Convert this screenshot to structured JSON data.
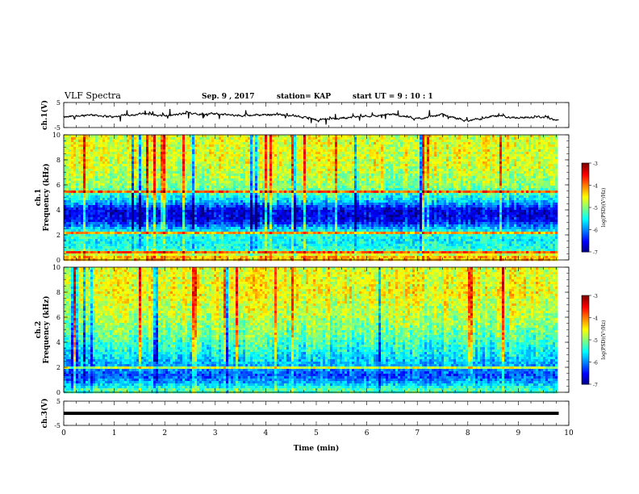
{
  "header": {
    "title": "VLF Spectra",
    "date": "Sep. 9 , 2017",
    "station": "station= KAP",
    "start_ut": "start UT =  9 : 10 : 1"
  },
  "chart_data": [
    {
      "type": "line",
      "panel": "ch1-waveform",
      "ylabel": "ch.1(V)",
      "ylim": [
        -5,
        5
      ],
      "yticks": [
        "5",
        "-5"
      ],
      "x": [
        0.0,
        0.5,
        1.0,
        1.5,
        2.0,
        2.5,
        3.0,
        3.5,
        4.0,
        4.5,
        5.0,
        5.5,
        6.0,
        6.5,
        7.0,
        7.5,
        8.0,
        8.5,
        9.0,
        9.5,
        9.8
      ],
      "values": [
        -1.0,
        0.2,
        -0.8,
        0.6,
        -0.5,
        0.8,
        0.4,
        -0.3,
        0.2,
        0.0,
        -2.0,
        -1.2,
        -0.4,
        0.3,
        -1.5,
        0.2,
        -2.5,
        -0.5,
        -1.0,
        -0.8,
        -2.0
      ],
      "line_color": "#000000"
    },
    {
      "type": "heatmap",
      "panel": "ch1-spectrogram",
      "ylabel": "ch.1\nFrequency (kHz)",
      "ylim": [
        0,
        10
      ],
      "yticks": [
        "0",
        "2",
        "4",
        "6",
        "8",
        "10"
      ],
      "xlim": [
        0,
        10
      ],
      "data_xmax": 9.8,
      "colorbar": {
        "label": "log(PSD)(V²/Hz)",
        "ticks": [
          "-3",
          "-4",
          "-5",
          "-6",
          "-7"
        ],
        "range": [
          -7,
          -3
        ]
      },
      "profile": [
        {
          "f": 0.3,
          "v": -4.2
        },
        {
          "f": 0.6,
          "v": -5.0
        },
        {
          "f": 1.0,
          "v": -5.4
        },
        {
          "f": 1.6,
          "v": -5.5
        },
        {
          "f": 2.2,
          "v": -5.3
        },
        {
          "f": 2.7,
          "v": -5.9
        },
        {
          "f": 3.2,
          "v": -6.5
        },
        {
          "f": 4.0,
          "v": -6.6
        },
        {
          "f": 4.8,
          "v": -5.6
        },
        {
          "f": 5.5,
          "v": -5.1
        },
        {
          "f": 6.5,
          "v": -4.8
        },
        {
          "f": 8.0,
          "v": -4.6
        },
        {
          "f": 10.0,
          "v": -4.6
        }
      ],
      "lines_khz": [
        0.4,
        0.7,
        2.2,
        5.5
      ]
    },
    {
      "type": "heatmap",
      "panel": "ch2-spectrogram",
      "ylabel": "ch.2\nFrequency (kHz)",
      "ylim": [
        0,
        10
      ],
      "yticks": [
        "0",
        "2",
        "4",
        "6",
        "8",
        "10"
      ],
      "xlim": [
        0,
        10
      ],
      "data_xmax": 9.8,
      "colorbar": {
        "label": "log(PSD)(V²/Hz)",
        "ticks": [
          "-3",
          "-4",
          "-5",
          "-6",
          "-7"
        ],
        "range": [
          -7,
          -3
        ]
      },
      "profile": [
        {
          "f": 0.3,
          "v": -5.2
        },
        {
          "f": 0.8,
          "v": -5.8
        },
        {
          "f": 1.4,
          "v": -6.2
        },
        {
          "f": 2.0,
          "v": -5.9
        },
        {
          "f": 2.8,
          "v": -5.6
        },
        {
          "f": 3.5,
          "v": -5.4
        },
        {
          "f": 4.5,
          "v": -5.1
        },
        {
          "f": 6.0,
          "v": -4.8
        },
        {
          "f": 8.0,
          "v": -4.5
        },
        {
          "f": 10.0,
          "v": -4.6
        }
      ],
      "lines_khz": [
        2.0
      ]
    },
    {
      "type": "line",
      "panel": "ch3-waveform",
      "ylabel": "ch.3(V)",
      "ylim": [
        -5,
        5
      ],
      "yticks": [
        "5",
        "-5"
      ],
      "xlabel": "Time (min)",
      "xlim": [
        0,
        10
      ],
      "xticks": [
        "0",
        "1",
        "2",
        "3",
        "4",
        "5",
        "6",
        "7",
        "8",
        "9",
        "10"
      ],
      "x": [
        0.0,
        9.8
      ],
      "values": [
        0.0,
        0.0
      ],
      "line_color": "#000000"
    }
  ]
}
